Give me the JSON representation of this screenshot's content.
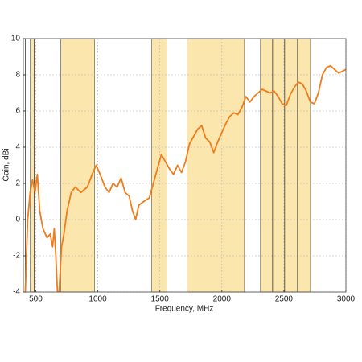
{
  "chart_data": {
    "type": "line",
    "x_label": "Frequency, MHz",
    "y_label": "Gain, dBi",
    "x": [
      416,
      435,
      455,
      474,
      494,
      513,
      532,
      558,
      591,
      617,
      636,
      649,
      662,
      675,
      688,
      708,
      727,
      753,
      786,
      818,
      864,
      916,
      955,
      987,
      1019,
      1058,
      1091,
      1123,
      1156,
      1188,
      1220,
      1253,
      1279,
      1305,
      1331,
      1370,
      1415,
      1448,
      1480,
      1513,
      1545,
      1578,
      1610,
      1643,
      1675,
      1707,
      1740,
      1773,
      1805,
      1837,
      1870,
      1902,
      1935,
      1967,
      1999,
      2032,
      2064,
      2097,
      2129,
      2162,
      2194,
      2227,
      2259,
      2292,
      2324,
      2356,
      2389,
      2421,
      2454,
      2486,
      2519,
      2551,
      2583,
      2616,
      2648,
      2681,
      2713,
      2746,
      2778,
      2811,
      2843,
      2876,
      2908,
      2941,
      2973,
      3000
    ],
    "series": [
      {
        "name": "Gain",
        "color": "#f07c1c",
        "values": [
          -4,
          0,
          1.5,
          2.2,
          1.5,
          2.5,
          0.5,
          -0.5,
          -1,
          -0.8,
          -1.5,
          -0.5,
          -2,
          -4,
          -4,
          -1.5,
          -0.8,
          0.5,
          1.5,
          1.8,
          1.5,
          1.8,
          2.5,
          3.0,
          2.5,
          1.8,
          1.5,
          2.0,
          1.8,
          2.3,
          1.5,
          1.3,
          0.5,
          0.0,
          0.8,
          1.0,
          1.2,
          2.0,
          2.8,
          3.6,
          3.2,
          2.8,
          2.5,
          3.0,
          2.6,
          3.2,
          4.2,
          4.6,
          5.0,
          5.2,
          4.5,
          4.3,
          3.7,
          4.3,
          4.8,
          5.3,
          5.7,
          5.9,
          5.8,
          6.2,
          6.8,
          6.5,
          6.8,
          7.0,
          7.2,
          7.1,
          7.0,
          7.1,
          6.8,
          6.4,
          6.3,
          6.9,
          7.3,
          7.6,
          7.5,
          7.1,
          6.5,
          6.4,
          7.0,
          8.0,
          8.4,
          8.5,
          8.3,
          8.1,
          8.2,
          8.3
        ]
      }
    ],
    "shaded_ranges": [
      [
        455,
        494
      ],
      [
        701,
        974
      ],
      [
        1435,
        1558
      ],
      [
        1720,
        2182
      ],
      [
        2311,
        2714
      ]
    ],
    "shade_color": "#fbe6ad",
    "vlines": [
      416,
      461,
      487,
      2409,
      2506,
      2610
    ],
    "xlim": [
      400,
      3000
    ],
    "ylim": [
      -4,
      10
    ],
    "xticks": [
      500,
      1000,
      1500,
      2000,
      2500,
      3000
    ],
    "yticks": [
      -4,
      -2,
      0,
      2,
      4,
      6,
      8,
      10
    ],
    "grid": true
  }
}
